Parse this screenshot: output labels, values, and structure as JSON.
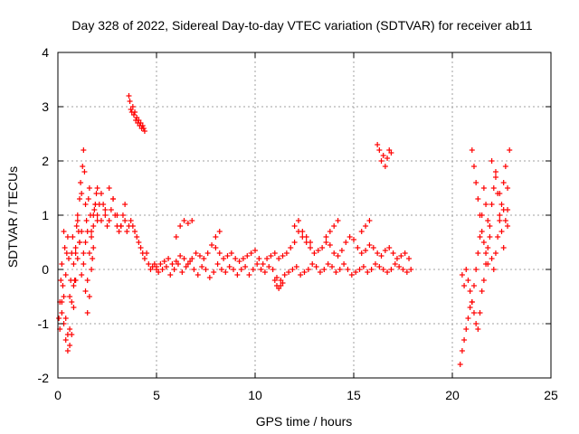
{
  "chart_data": {
    "type": "scatter",
    "title": "Day 328 of 2022, Sidereal Day-to-day VTEC variation (SDTVAR) for receiver ab11",
    "xlabel": "GPS time / hours",
    "ylabel": "SDTVAR / TECUs",
    "xlim": [
      0,
      25
    ],
    "ylim": [
      -2,
      4
    ],
    "xticks": [
      "0",
      "5",
      "10",
      "15",
      "20",
      "25"
    ],
    "yticks": [
      "-2",
      "-1",
      "0",
      "1",
      "2",
      "3",
      "4"
    ],
    "grid": true,
    "marker": "+",
    "series": [
      {
        "name": "SDTVAR",
        "color": "#ff0000",
        "x": [
          0.05,
          0.1,
          0.15,
          0.2,
          0.25,
          0.3,
          0.35,
          0.4,
          0.45,
          0.5,
          0.55,
          0.6,
          0.65,
          0.7,
          0.75,
          0.8,
          0.85,
          0.9,
          0.95,
          1.0,
          1.05,
          1.1,
          1.15,
          1.2,
          1.25,
          1.3,
          1.35,
          1.4,
          1.45,
          1.5,
          1.55,
          1.6,
          1.65,
          1.7,
          1.75,
          1.8,
          1.85,
          1.9,
          1.95,
          2.0,
          0.2,
          0.3,
          0.4,
          0.5,
          0.6,
          0.7,
          0.8,
          0.9,
          1.0,
          1.1,
          1.2,
          1.3,
          1.4,
          1.5,
          1.6,
          1.7,
          1.8,
          1.9,
          2.0,
          0.1,
          0.2,
          0.3,
          0.4,
          0.5,
          0.6,
          0.7,
          0.8,
          0.9,
          1.0,
          1.1,
          1.2,
          1.3,
          1.4,
          1.5,
          1.6,
          1.7,
          1.8,
          2.0,
          2.1,
          2.2,
          2.3,
          2.4,
          2.5,
          2.6,
          2.7,
          2.8,
          2.9,
          3.0,
          3.1,
          3.2,
          3.3,
          3.4,
          3.5,
          3.6,
          3.7,
          3.8,
          3.9,
          4.0,
          4.1,
          4.2,
          4.3,
          4.4,
          4.5,
          4.6,
          4.7,
          4.8,
          4.9,
          5.0,
          2.2,
          2.4,
          2.6,
          2.8,
          3.0,
          3.2,
          3.4,
          3.6,
          3.65,
          3.7,
          3.75,
          3.8,
          3.85,
          3.9,
          3.95,
          4.0,
          4.05,
          4.1,
          4.15,
          4.2,
          4.25,
          4.3,
          4.35,
          4.4,
          5.0,
          5.2,
          5.4,
          5.6,
          5.8,
          6.0,
          6.2,
          6.4,
          6.6,
          6.8,
          7.0,
          7.2,
          7.4,
          7.6,
          7.8,
          8.0,
          8.2,
          8.4,
          8.6,
          8.8,
          9.0,
          9.2,
          9.4,
          9.6,
          9.8,
          10.0,
          10.2,
          10.4,
          10.6,
          10.8,
          11.0,
          11.2,
          11.4,
          11.6,
          11.8,
          12.0,
          12.2,
          12.4,
          12.6,
          12.8,
          13.0,
          13.2,
          13.4,
          13.6,
          13.8,
          14.0,
          14.2,
          14.4,
          14.6,
          14.8,
          15.0,
          15.2,
          15.4,
          15.6,
          15.8,
          16.0,
          16.2,
          16.4,
          16.6,
          16.8,
          17.0,
          17.2,
          17.4,
          17.6,
          17.8,
          5.1,
          5.3,
          5.5,
          5.7,
          5.9,
          6.1,
          6.3,
          6.5,
          6.7,
          6.9,
          7.1,
          7.3,
          7.5,
          7.7,
          7.9,
          8.1,
          8.3,
          8.5,
          8.7,
          8.9,
          9.1,
          9.3,
          9.5,
          9.7,
          9.9,
          10.1,
          10.3,
          10.5,
          10.7,
          10.9,
          11.1,
          11.3,
          11.5,
          11.7,
          11.9,
          12.1,
          12.3,
          12.5,
          12.7,
          12.9,
          13.1,
          13.3,
          13.5,
          13.7,
          13.9,
          14.1,
          14.3,
          14.5,
          14.7,
          14.9,
          15.1,
          15.3,
          15.5,
          15.7,
          15.9,
          16.1,
          16.3,
          16.5,
          16.7,
          16.9,
          17.1,
          17.3,
          17.5,
          17.7,
          17.9,
          6.0,
          6.2,
          6.4,
          6.6,
          6.8,
          8.0,
          8.2,
          12.0,
          12.2,
          12.4,
          12.6,
          12.8,
          13.6,
          13.8,
          14.0,
          14.2,
          15.4,
          15.6,
          15.8,
          11.0,
          11.1,
          11.2,
          11.3,
          11.4,
          16.2,
          16.3,
          16.4,
          16.5,
          16.6,
          16.7,
          16.8,
          16.9,
          20.4,
          20.5,
          20.6,
          20.7,
          20.8,
          20.9,
          21.0,
          21.1,
          21.2,
          21.3,
          21.4,
          21.5,
          21.6,
          21.7,
          21.8,
          21.9,
          22.0,
          22.1,
          22.2,
          22.3,
          22.4,
          22.5,
          22.6,
          22.7,
          22.8,
          22.9,
          20.5,
          20.6,
          20.7,
          20.8,
          20.9,
          21.0,
          21.1,
          21.2,
          21.3,
          21.4,
          21.5,
          21.6,
          21.7,
          21.8,
          21.9,
          22.0,
          22.1,
          22.2,
          22.3,
          22.4,
          22.5,
          22.6,
          22.7,
          22.8,
          21.0,
          21.1,
          21.2,
          21.3,
          21.4,
          21.5,
          21.6,
          21.7,
          21.8,
          22.0,
          22.2,
          22.4,
          22.6,
          22.8
        ],
        "y": [
          -0.9,
          -0.6,
          -0.2,
          0.1,
          -0.3,
          0.7,
          0.4,
          -0.1,
          0.3,
          0.6,
          0.2,
          -0.5,
          -0.2,
          0.3,
          0.6,
          0.1,
          -0.2,
          0.3,
          0.8,
          1.0,
          0.7,
          1.3,
          1.6,
          1.4,
          1.9,
          2.2,
          1.8,
          1.2,
          0.9,
          0.7,
          1.3,
          1.5,
          1.0,
          0.6,
          0.2,
          0.8,
          1.1,
          1.2,
          1.4,
          1.0,
          -0.6,
          -1.0,
          -1.3,
          -1.5,
          -1.1,
          -0.6,
          -0.3,
          0.4,
          0.9,
          0.5,
          -0.1,
          0.1,
          0.5,
          -0.2,
          0.3,
          0.7,
          1.0,
          1.2,
          1.5,
          -1.1,
          -0.8,
          -0.5,
          -0.9,
          -1.2,
          -1.4,
          -1.2,
          -0.7,
          -0.2,
          0.2,
          0.5,
          0.7,
          0.3,
          -0.4,
          -0.8,
          -0.5,
          0.0,
          0.4,
          0.9,
          1.2,
          1.4,
          1.2,
          1.0,
          0.8,
          0.9,
          1.1,
          1.3,
          1.0,
          0.8,
          0.7,
          0.8,
          1.0,
          0.9,
          0.7,
          0.8,
          0.9,
          0.8,
          0.7,
          0.6,
          0.5,
          0.4,
          0.3,
          0.2,
          0.3,
          0.1,
          0.0,
          0.05,
          0.1,
          0.0,
          0.9,
          1.1,
          1.5,
          1.3,
          1.0,
          0.8,
          1.2,
          3.2,
          3.1,
          2.95,
          2.9,
          3.0,
          2.85,
          2.9,
          2.75,
          2.8,
          2.7,
          2.75,
          2.65,
          2.7,
          2.6,
          2.65,
          2.6,
          2.55,
          0.05,
          0.1,
          0.15,
          0.2,
          0.1,
          0.15,
          0.25,
          0.2,
          0.1,
          0.2,
          0.3,
          0.25,
          0.2,
          0.3,
          0.45,
          0.4,
          0.3,
          0.2,
          0.25,
          0.3,
          0.2,
          0.15,
          0.2,
          0.25,
          0.3,
          0.35,
          0.2,
          0.1,
          0.2,
          0.25,
          0.3,
          0.2,
          0.25,
          0.3,
          0.4,
          0.5,
          0.7,
          0.6,
          0.5,
          0.4,
          0.3,
          0.35,
          0.4,
          0.5,
          0.45,
          0.3,
          0.25,
          0.35,
          0.5,
          0.6,
          0.55,
          0.4,
          0.3,
          0.35,
          0.45,
          0.4,
          0.3,
          0.25,
          0.35,
          0.4,
          0.3,
          0.2,
          0.25,
          0.3,
          0.2,
          -0.05,
          0.0,
          0.05,
          -0.1,
          0.0,
          0.1,
          -0.05,
          0.05,
          0.15,
          0.0,
          -0.1,
          0.05,
          0.0,
          -0.15,
          -0.05,
          0.1,
          0.0,
          -0.05,
          0.05,
          0.0,
          -0.1,
          0.0,
          0.05,
          -0.1,
          0.0,
          0.1,
          0.0,
          -0.05,
          0.05,
          0.0,
          -0.15,
          -0.2,
          -0.1,
          -0.05,
          0.0,
          0.05,
          -0.1,
          -0.05,
          0.0,
          0.1,
          0.05,
          -0.05,
          0.0,
          0.1,
          0.05,
          -0.05,
          0.0,
          0.1,
          0.0,
          -0.1,
          -0.05,
          0.0,
          0.05,
          -0.05,
          0.0,
          0.1,
          0.05,
          0.0,
          -0.05,
          0.0,
          0.1,
          0.05,
          0.0,
          -0.05,
          0.0,
          0.6,
          0.8,
          0.9,
          0.85,
          0.9,
          0.6,
          0.7,
          0.8,
          0.9,
          0.7,
          0.6,
          0.5,
          0.6,
          0.7,
          0.8,
          0.9,
          0.7,
          0.8,
          0.9,
          -0.2,
          -0.3,
          -0.35,
          -0.3,
          -0.25,
          2.3,
          2.2,
          2.0,
          2.1,
          1.9,
          2.05,
          2.2,
          2.15,
          -1.75,
          -1.5,
          -1.3,
          -1.1,
          -0.9,
          -0.7,
          -0.6,
          -0.8,
          -1.0,
          -1.1,
          -0.8,
          -0.4,
          -0.2,
          0.1,
          0.4,
          0.8,
          1.2,
          1.5,
          1.8,
          1.4,
          1.0,
          0.7,
          0.4,
          0.9,
          1.5,
          2.2,
          -0.1,
          -0.3,
          0.0,
          -0.2,
          -0.4,
          -0.6,
          -0.3,
          0.0,
          0.3,
          0.6,
          1.0,
          1.5,
          1.2,
          0.9,
          0.6,
          0.2,
          0.0,
          0.3,
          0.6,
          0.9,
          1.2,
          1.6,
          1.9,
          1.1,
          2.2,
          1.9,
          1.6,
          1.3,
          1.0,
          0.7,
          0.5,
          0.3,
          0.1,
          2.0,
          1.7,
          1.4,
          1.1,
          0.8
        ]
      }
    ]
  }
}
